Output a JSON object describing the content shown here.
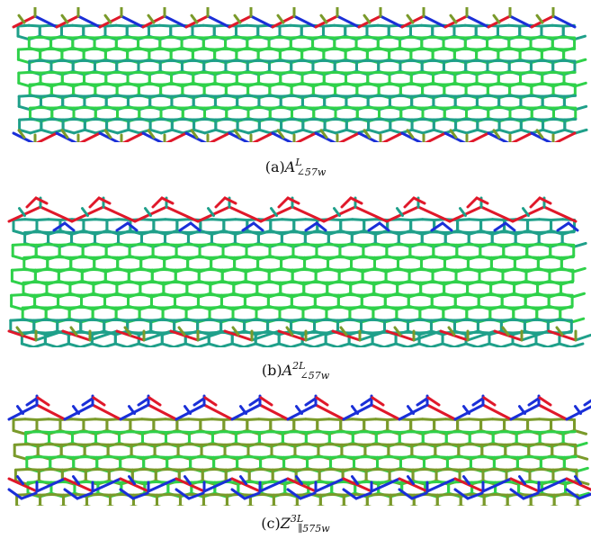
{
  "figure": {
    "panels": [
      {
        "id": "a",
        "caption": {
          "prefix": "(a)",
          "var": "A",
          "sup": "L",
          "sub": "∠57w"
        }
      },
      {
        "id": "b",
        "caption": {
          "prefix": "(b)",
          "var": "A",
          "sup": "2L",
          "sub": "∠57w"
        }
      },
      {
        "id": "c",
        "caption": {
          "prefix": "(c)",
          "var": "Z",
          "sup": "3L",
          "sub": "∥575w"
        }
      }
    ],
    "colors": {
      "green": "#2fd14a",
      "teal": "#1fa08a",
      "blue": "#1a2fd8",
      "red": "#e0182a",
      "olive": "#7a9a2a"
    }
  }
}
